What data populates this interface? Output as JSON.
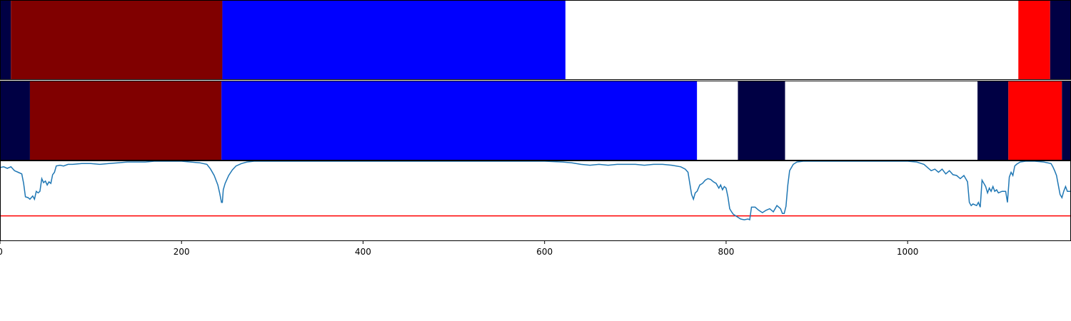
{
  "chart_data": {
    "type": "segmentation_timeline",
    "x_range": [
      0,
      1180
    ],
    "x_ticks": [
      0,
      200,
      400,
      600,
      800,
      1000
    ],
    "x_tick_labels": [
      "0",
      "200",
      "400",
      "600",
      "800",
      "1000"
    ],
    "colors": {
      "navy": "#000044",
      "darkred": "#800000",
      "blue": "#0000ff",
      "white": "#ffffff",
      "red": "#ff0000",
      "line": "#1f77b4",
      "threshold": "#ff0000"
    },
    "tracks": [
      {
        "segments": [
          {
            "start": 0,
            "end": 12,
            "color": "navy"
          },
          {
            "start": 12,
            "end": 245,
            "color": "darkred"
          },
          {
            "start": 245,
            "end": 623,
            "color": "blue"
          },
          {
            "start": 623,
            "end": 1122,
            "color": "white"
          },
          {
            "start": 1122,
            "end": 1157,
            "color": "red"
          },
          {
            "start": 1157,
            "end": 1180,
            "color": "navy"
          }
        ]
      },
      {
        "segments": [
          {
            "start": 0,
            "end": 33,
            "color": "navy"
          },
          {
            "start": 33,
            "end": 244,
            "color": "darkred"
          },
          {
            "start": 244,
            "end": 768,
            "color": "blue"
          },
          {
            "start": 768,
            "end": 813,
            "color": "white"
          },
          {
            "start": 813,
            "end": 865,
            "color": "navy"
          },
          {
            "start": 865,
            "end": 1077,
            "color": "white"
          },
          {
            "start": 1077,
            "end": 1111,
            "color": "navy"
          },
          {
            "start": 1111,
            "end": 1170,
            "color": "red"
          },
          {
            "start": 1170,
            "end": 1180,
            "color": "navy"
          }
        ]
      }
    ],
    "line_panel": {
      "y_range": [
        0,
        1
      ],
      "threshold": 0.31,
      "points": [
        [
          0,
          0.92
        ],
        [
          4,
          0.93
        ],
        [
          8,
          0.91
        ],
        [
          12,
          0.93
        ],
        [
          16,
          0.88
        ],
        [
          20,
          0.86
        ],
        [
          24,
          0.84
        ],
        [
          26,
          0.72
        ],
        [
          28,
          0.55
        ],
        [
          31,
          0.54
        ],
        [
          33,
          0.52
        ],
        [
          36,
          0.56
        ],
        [
          38,
          0.52
        ],
        [
          40,
          0.62
        ],
        [
          42,
          0.6
        ],
        [
          44,
          0.62
        ],
        [
          46,
          0.78
        ],
        [
          48,
          0.73
        ],
        [
          50,
          0.75
        ],
        [
          52,
          0.7
        ],
        [
          54,
          0.74
        ],
        [
          56,
          0.72
        ],
        [
          58,
          0.83
        ],
        [
          60,
          0.86
        ],
        [
          62,
          0.94
        ],
        [
          66,
          0.95
        ],
        [
          70,
          0.94
        ],
        [
          75,
          0.96
        ],
        [
          80,
          0.96
        ],
        [
          90,
          0.97
        ],
        [
          100,
          0.97
        ],
        [
          110,
          0.96
        ],
        [
          120,
          0.97
        ],
        [
          130,
          0.98
        ],
        [
          140,
          0.99
        ],
        [
          150,
          0.99
        ],
        [
          160,
          0.99
        ],
        [
          170,
          1.0
        ],
        [
          180,
          1.0
        ],
        [
          190,
          1.0
        ],
        [
          200,
          1.0
        ],
        [
          210,
          0.99
        ],
        [
          220,
          0.98
        ],
        [
          228,
          0.96
        ],
        [
          232,
          0.9
        ],
        [
          236,
          0.82
        ],
        [
          240,
          0.7
        ],
        [
          242,
          0.6
        ],
        [
          244,
          0.48
        ],
        [
          245,
          0.48
        ],
        [
          246,
          0.64
        ],
        [
          248,
          0.72
        ],
        [
          252,
          0.82
        ],
        [
          256,
          0.89
        ],
        [
          260,
          0.94
        ],
        [
          266,
          0.97
        ],
        [
          272,
          0.99
        ],
        [
          280,
          1.0
        ],
        [
          290,
          1.0
        ],
        [
          300,
          1.0
        ],
        [
          350,
          1.0
        ],
        [
          400,
          1.0
        ],
        [
          450,
          1.0
        ],
        [
          500,
          1.0
        ],
        [
          550,
          1.0
        ],
        [
          600,
          1.0
        ],
        [
          620,
          0.99
        ],
        [
          630,
          0.98
        ],
        [
          640,
          0.96
        ],
        [
          650,
          0.95
        ],
        [
          660,
          0.96
        ],
        [
          670,
          0.95
        ],
        [
          680,
          0.96
        ],
        [
          690,
          0.96
        ],
        [
          700,
          0.96
        ],
        [
          710,
          0.95
        ],
        [
          720,
          0.96
        ],
        [
          730,
          0.96
        ],
        [
          740,
          0.95
        ],
        [
          750,
          0.93
        ],
        [
          755,
          0.9
        ],
        [
          758,
          0.86
        ],
        [
          760,
          0.72
        ],
        [
          762,
          0.58
        ],
        [
          764,
          0.52
        ],
        [
          766,
          0.6
        ],
        [
          768,
          0.62
        ],
        [
          771,
          0.7
        ],
        [
          774,
          0.72
        ],
        [
          777,
          0.76
        ],
        [
          780,
          0.78
        ],
        [
          783,
          0.77
        ],
        [
          786,
          0.74
        ],
        [
          789,
          0.72
        ],
        [
          792,
          0.66
        ],
        [
          794,
          0.7
        ],
        [
          796,
          0.64
        ],
        [
          798,
          0.68
        ],
        [
          800,
          0.66
        ],
        [
          802,
          0.55
        ],
        [
          804,
          0.4
        ],
        [
          806,
          0.36
        ],
        [
          808,
          0.33
        ],
        [
          812,
          0.3
        ],
        [
          816,
          0.27
        ],
        [
          820,
          0.26
        ],
        [
          824,
          0.27
        ],
        [
          826,
          0.26
        ],
        [
          828,
          0.42
        ],
        [
          832,
          0.42
        ],
        [
          836,
          0.38
        ],
        [
          840,
          0.35
        ],
        [
          844,
          0.38
        ],
        [
          848,
          0.4
        ],
        [
          852,
          0.36
        ],
        [
          856,
          0.44
        ],
        [
          860,
          0.4
        ],
        [
          862,
          0.34
        ],
        [
          864,
          0.34
        ],
        [
          866,
          0.43
        ],
        [
          868,
          0.7
        ],
        [
          870,
          0.88
        ],
        [
          874,
          0.96
        ],
        [
          878,
          0.99
        ],
        [
          885,
          1.0
        ],
        [
          900,
          1.0
        ],
        [
          950,
          1.0
        ],
        [
          1000,
          1.0
        ],
        [
          1010,
          0.99
        ],
        [
          1018,
          0.96
        ],
        [
          1022,
          0.92
        ],
        [
          1026,
          0.88
        ],
        [
          1030,
          0.9
        ],
        [
          1034,
          0.86
        ],
        [
          1038,
          0.9
        ],
        [
          1042,
          0.84
        ],
        [
          1046,
          0.88
        ],
        [
          1050,
          0.83
        ],
        [
          1054,
          0.82
        ],
        [
          1058,
          0.78
        ],
        [
          1062,
          0.82
        ],
        [
          1066,
          0.74
        ],
        [
          1068,
          0.48
        ],
        [
          1070,
          0.44
        ],
        [
          1072,
          0.46
        ],
        [
          1074,
          0.45
        ],
        [
          1076,
          0.44
        ],
        [
          1078,
          0.48
        ],
        [
          1080,
          0.42
        ],
        [
          1082,
          0.76
        ],
        [
          1084,
          0.72
        ],
        [
          1086,
          0.68
        ],
        [
          1088,
          0.6
        ],
        [
          1090,
          0.66
        ],
        [
          1092,
          0.62
        ],
        [
          1094,
          0.68
        ],
        [
          1096,
          0.62
        ],
        [
          1098,
          0.64
        ],
        [
          1100,
          0.6
        ],
        [
          1104,
          0.62
        ],
        [
          1108,
          0.62
        ],
        [
          1110,
          0.48
        ],
        [
          1112,
          0.8
        ],
        [
          1114,
          0.86
        ],
        [
          1116,
          0.82
        ],
        [
          1118,
          0.94
        ],
        [
          1120,
          0.96
        ],
        [
          1124,
          0.99
        ],
        [
          1130,
          1.0
        ],
        [
          1140,
          1.0
        ],
        [
          1150,
          0.99
        ],
        [
          1158,
          0.97
        ],
        [
          1160,
          0.93
        ],
        [
          1162,
          0.88
        ],
        [
          1164,
          0.82
        ],
        [
          1166,
          0.7
        ],
        [
          1168,
          0.58
        ],
        [
          1170,
          0.54
        ],
        [
          1172,
          0.62
        ],
        [
          1174,
          0.68
        ],
        [
          1176,
          0.62
        ],
        [
          1178,
          0.62
        ],
        [
          1180,
          0.62
        ]
      ]
    }
  }
}
